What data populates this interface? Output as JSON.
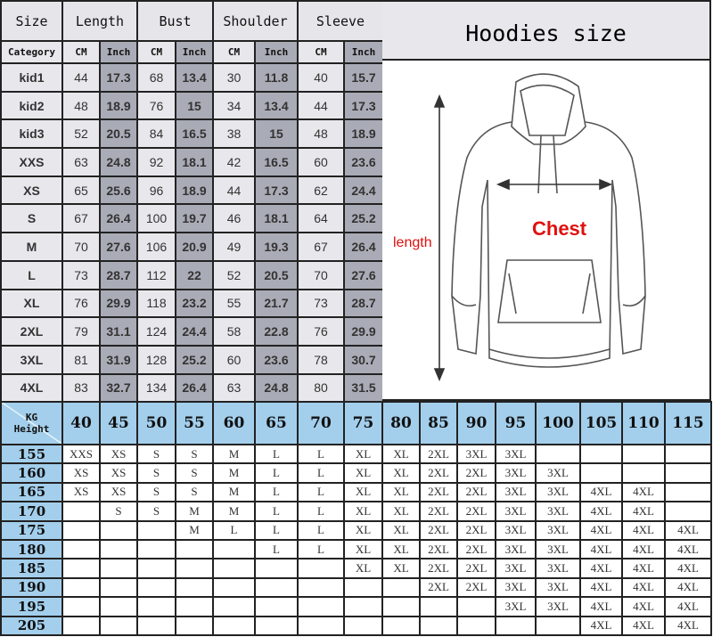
{
  "size_table": {
    "headers": [
      "Size",
      "Length",
      "Bust",
      "Shoulder",
      "Sleeve"
    ],
    "category_label": "Category",
    "unit_cm": "CM",
    "unit_inch": "Inch",
    "rows": [
      [
        "kid1",
        "44",
        "17.3",
        "68",
        "13.4",
        "30",
        "11.8",
        "40",
        "15.7"
      ],
      [
        "kid2",
        "48",
        "18.9",
        "76",
        "15",
        "34",
        "13.4",
        "44",
        "17.3"
      ],
      [
        "kid3",
        "52",
        "20.5",
        "84",
        "16.5",
        "38",
        "15",
        "48",
        "18.9"
      ],
      [
        "XXS",
        "63",
        "24.8",
        "92",
        "18.1",
        "42",
        "16.5",
        "60",
        "23.6"
      ],
      [
        "XS",
        "65",
        "25.6",
        "96",
        "18.9",
        "44",
        "17.3",
        "62",
        "24.4"
      ],
      [
        "S",
        "67",
        "26.4",
        "100",
        "19.7",
        "46",
        "18.1",
        "64",
        "25.2"
      ],
      [
        "M",
        "70",
        "27.6",
        "106",
        "20.9",
        "49",
        "19.3",
        "67",
        "26.4"
      ],
      [
        "L",
        "73",
        "28.7",
        "112",
        "22",
        "52",
        "20.5",
        "70",
        "27.6"
      ],
      [
        "XL",
        "76",
        "29.9",
        "118",
        "23.2",
        "55",
        "21.7",
        "73",
        "28.7"
      ],
      [
        "2XL",
        "79",
        "31.1",
        "124",
        "24.4",
        "58",
        "22.8",
        "76",
        "29.9"
      ],
      [
        "3XL",
        "81",
        "31.9",
        "128",
        "25.2",
        "60",
        "23.6",
        "78",
        "30.7"
      ],
      [
        "4XL",
        "83",
        "32.7",
        "134",
        "26.4",
        "63",
        "24.8",
        "80",
        "31.5"
      ]
    ]
  },
  "diagram": {
    "title": "Hoodies size",
    "length_label": "length",
    "chest_label": "Chest",
    "label_color": "#e01010"
  },
  "fit_table": {
    "corner_top": "KG",
    "corner_bottom": "Height",
    "weights": [
      "40",
      "45",
      "50",
      "55",
      "60",
      "65",
      "70",
      "75",
      "80",
      "85",
      "90",
      "95",
      "100",
      "105",
      "110",
      "115"
    ],
    "rows": [
      {
        "height": "155",
        "sizes": [
          "XXS",
          "XS",
          "S",
          "S",
          "M",
          "L",
          "L",
          "XL",
          "XL",
          "2XL",
          "3XL",
          "3XL",
          "",
          "",
          "",
          ""
        ]
      },
      {
        "height": "160",
        "sizes": [
          "XS",
          "XS",
          "S",
          "S",
          "M",
          "L",
          "L",
          "XL",
          "XL",
          "2XL",
          "2XL",
          "3XL",
          "3XL",
          "",
          "",
          ""
        ]
      },
      {
        "height": "165",
        "sizes": [
          "XS",
          "XS",
          "S",
          "S",
          "M",
          "L",
          "L",
          "XL",
          "XL",
          "2XL",
          "2XL",
          "3XL",
          "3XL",
          "4XL",
          "4XL",
          ""
        ]
      },
      {
        "height": "170",
        "sizes": [
          "",
          "S",
          "S",
          "M",
          "M",
          "L",
          "L",
          "XL",
          "XL",
          "2XL",
          "2XL",
          "3XL",
          "3XL",
          "4XL",
          "4XL",
          ""
        ]
      },
      {
        "height": "175",
        "sizes": [
          "",
          "",
          "",
          "M",
          "L",
          "L",
          "L",
          "XL",
          "XL",
          "2XL",
          "2XL",
          "3XL",
          "3XL",
          "4XL",
          "4XL",
          "4XL"
        ]
      },
      {
        "height": "180",
        "sizes": [
          "",
          "",
          "",
          "",
          "",
          "L",
          "L",
          "XL",
          "XL",
          "2XL",
          "2XL",
          "3XL",
          "3XL",
          "4XL",
          "4XL",
          "4XL"
        ]
      },
      {
        "height": "185",
        "sizes": [
          "",
          "",
          "",
          "",
          "",
          "",
          "",
          "XL",
          "XL",
          "2XL",
          "2XL",
          "3XL",
          "3XL",
          "4XL",
          "4XL",
          "4XL"
        ]
      },
      {
        "height": "190",
        "sizes": [
          "",
          "",
          "",
          "",
          "",
          "",
          "",
          "",
          "",
          "2XL",
          "2XL",
          "3XL",
          "3XL",
          "4XL",
          "4XL",
          "4XL"
        ]
      },
      {
        "height": "195",
        "sizes": [
          "",
          "",
          "",
          "",
          "",
          "",
          "",
          "",
          "",
          "",
          "",
          "3XL",
          "3XL",
          "4XL",
          "4XL",
          "4XL"
        ]
      },
      {
        "height": "205",
        "sizes": [
          "",
          "",
          "",
          "",
          "",
          "",
          "",
          "",
          "",
          "",
          "",
          "",
          "",
          "4XL",
          "4XL",
          "4XL"
        ]
      }
    ],
    "header_color": "#a3cfec"
  }
}
